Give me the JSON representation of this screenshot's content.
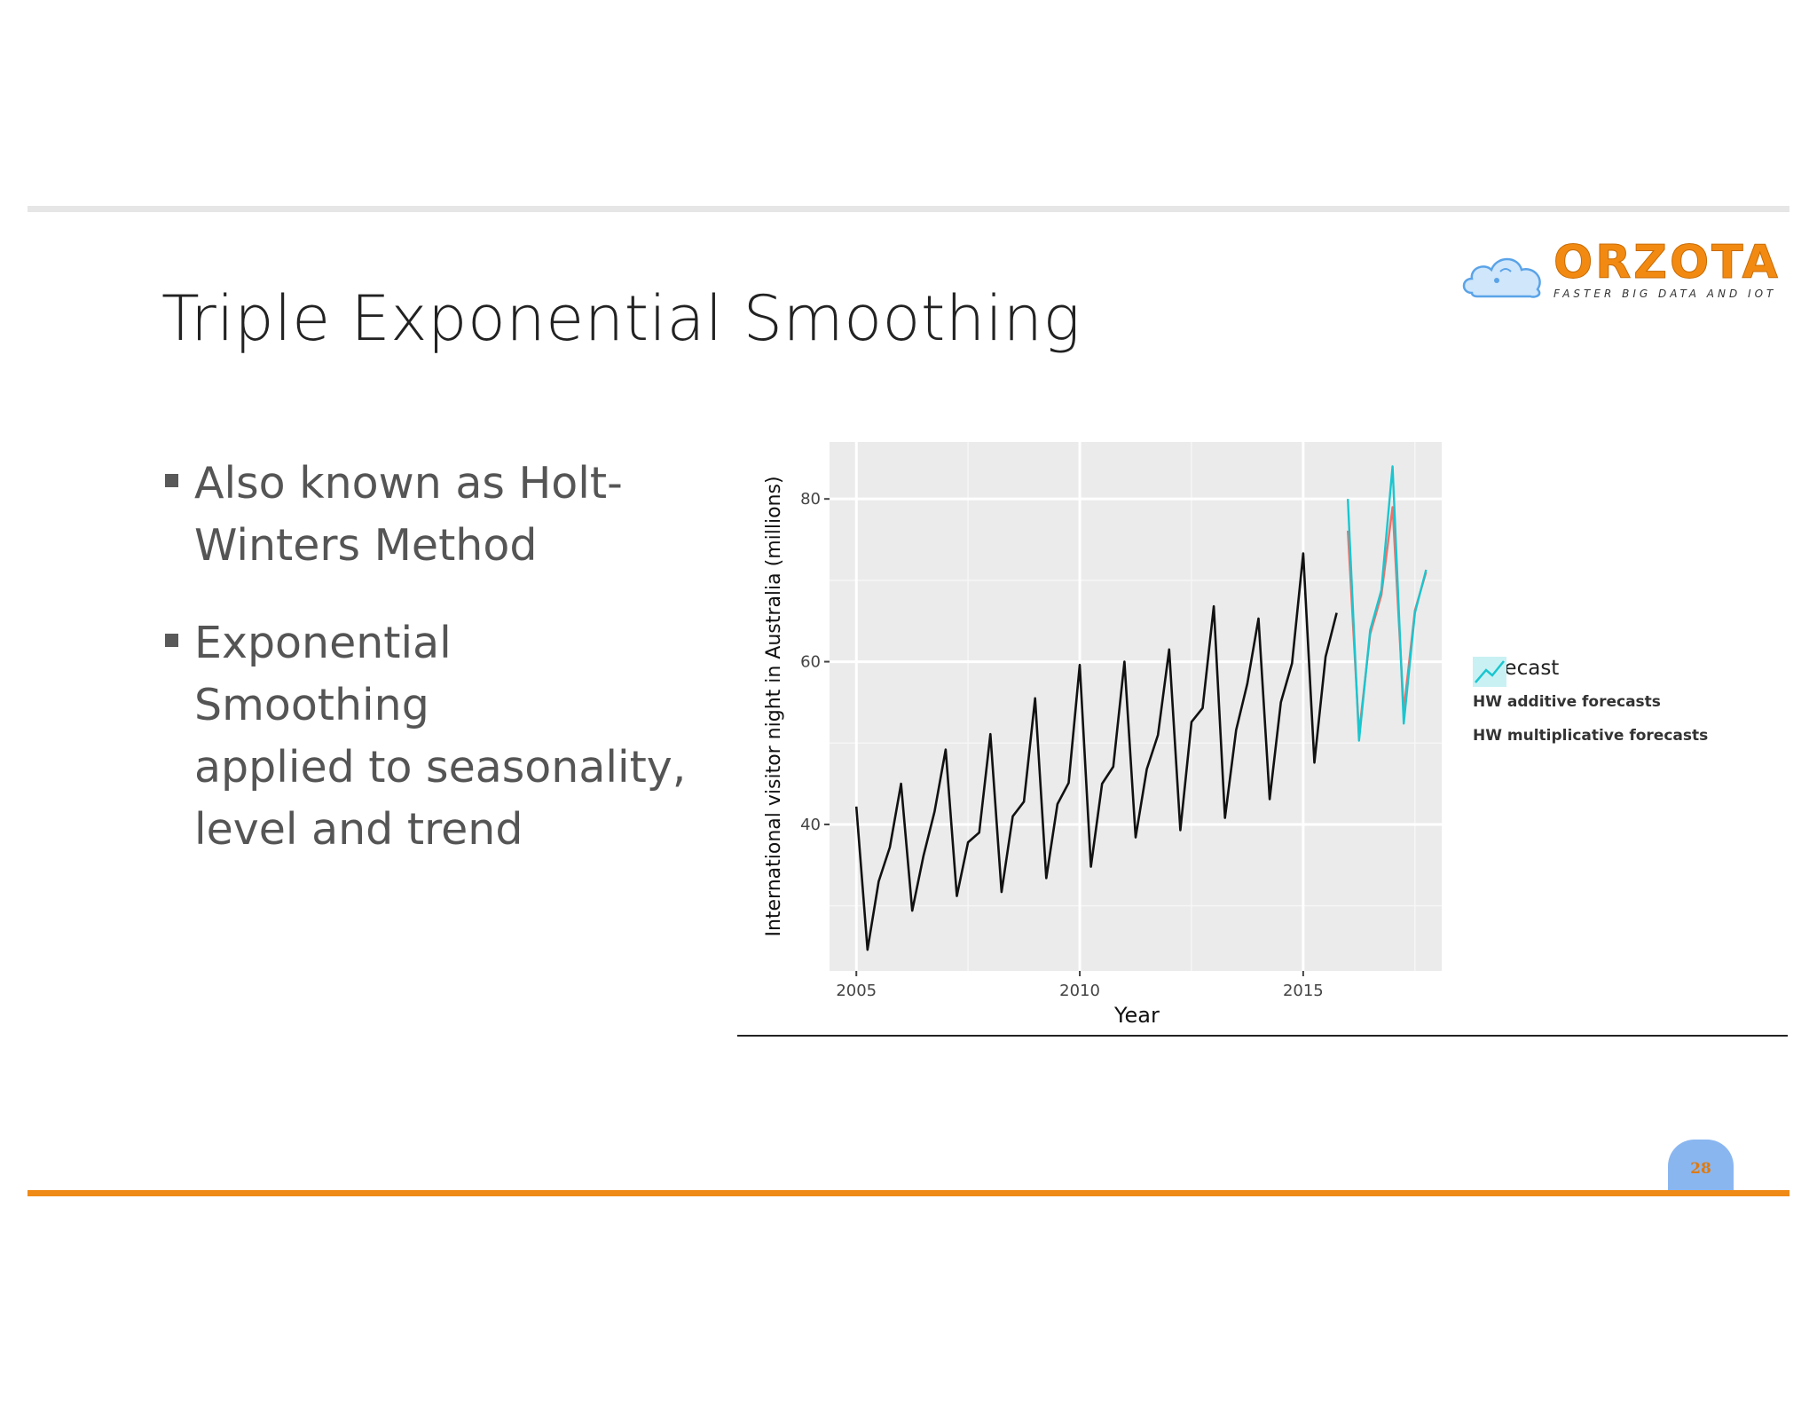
{
  "slide": {
    "title": "Triple Exponential Smoothing",
    "bullets": [
      "Also known as Holt-\nWinters Method",
      "Exponential Smoothing\napplied to seasonality,\nlevel and trend"
    ],
    "page_number": "28",
    "logo": {
      "word": "ORZOTA",
      "tagline": "FASTER BIG DATA AND IOT"
    },
    "colors": {
      "accent_orange": "#ef8a17",
      "top_rule": "#e6e6e6",
      "badge": "#8ab6f0"
    }
  },
  "chart_data": {
    "type": "line",
    "xlabel": "Year",
    "ylabel": "International visitor night in Australia (millions)",
    "xlim": [
      2004.4,
      2018.1
    ],
    "ylim": [
      22,
      87
    ],
    "x_ticks": [
      2005,
      2010,
      2015
    ],
    "y_ticks": [
      40,
      60,
      80
    ],
    "grid": true,
    "legend_title": "Forecast",
    "legend_position": "right",
    "series": [
      {
        "color": "#111111",
        "x": [
          2005.0,
          2005.25,
          2005.5,
          2005.75,
          2006.0,
          2006.25,
          2006.5,
          2006.75,
          2007.0,
          2007.25,
          2007.5,
          2007.75,
          2008.0,
          2008.25,
          2008.5,
          2008.75,
          2009.0,
          2009.25,
          2009.5,
          2009.75,
          2010.0,
          2010.25,
          2010.5,
          2010.75,
          2011.0,
          2011.25,
          2011.5,
          2011.75,
          2012.0,
          2012.25,
          2012.5,
          2012.75,
          2013.0,
          2013.25,
          2013.5,
          2013.75,
          2014.0,
          2014.25,
          2014.5,
          2014.75,
          2015.0,
          2015.25,
          2015.5,
          2015.75
        ],
        "values": [
          42.2,
          24.6,
          33.0,
          37.2,
          45.0,
          29.4,
          36.1,
          41.6,
          49.2,
          31.2,
          37.8,
          39.0,
          51.1,
          31.7,
          41.0,
          42.8,
          55.5,
          33.4,
          42.5,
          45.1,
          59.6,
          34.8,
          45.0,
          47.1,
          60.0,
          38.4,
          46.8,
          51.0,
          61.5,
          39.3,
          52.6,
          54.3,
          66.8,
          40.8,
          51.6,
          57.3,
          65.3,
          43.1,
          55.0,
          59.8,
          73.3,
          47.6,
          60.6,
          66.0
        ]
      },
      {
        "name": "HW additive forecasts",
        "color": "#e8736c",
        "x": [
          2016.0,
          2016.25,
          2016.5,
          2016.75,
          2017.0,
          2017.25,
          2017.5,
          2017.75
        ],
        "values": [
          76.1,
          51.2,
          63.4,
          68.2,
          79.0,
          54.0,
          66.3,
          71.0
        ]
      },
      {
        "name": "HW multiplicative forecasts",
        "color": "#19c6cf",
        "x": [
          2016.0,
          2016.25,
          2016.5,
          2016.75,
          2017.0,
          2017.25,
          2017.5,
          2017.75
        ],
        "values": [
          80.0,
          50.3,
          63.9,
          68.8,
          84.0,
          52.4,
          66.0,
          71.3
        ]
      }
    ]
  }
}
